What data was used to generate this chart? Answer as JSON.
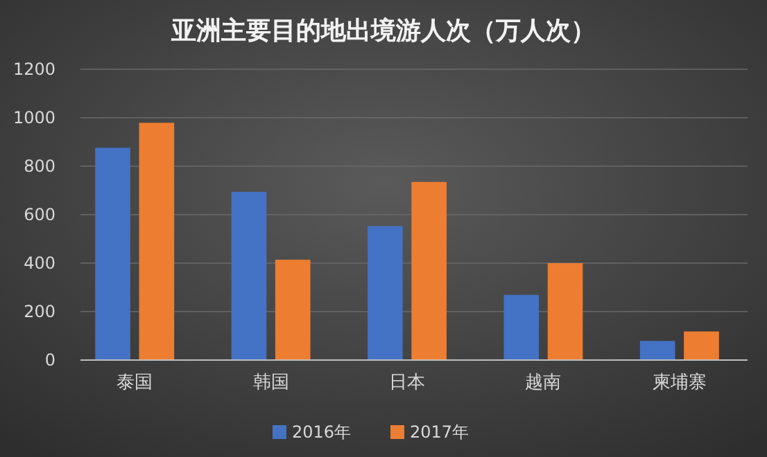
{
  "chart_data": {
    "type": "bar",
    "title": "亚洲主要目的地出境游人次（万人次）",
    "categories": [
      "泰国",
      "韩国",
      "日本",
      "越南",
      "柬埔寨"
    ],
    "series": [
      {
        "name": "2016年",
        "color": "#4472c4",
        "values": [
          876,
          694,
          553,
          269,
          79
        ]
      },
      {
        "name": "2017年",
        "color": "#ed7d31",
        "values": [
          979,
          414,
          735,
          400,
          118
        ]
      }
    ],
    "ylim": [
      0,
      1200
    ],
    "yticks": [
      0,
      200,
      400,
      600,
      800,
      1000,
      1200
    ],
    "grid": "y",
    "legend": "bottom"
  }
}
